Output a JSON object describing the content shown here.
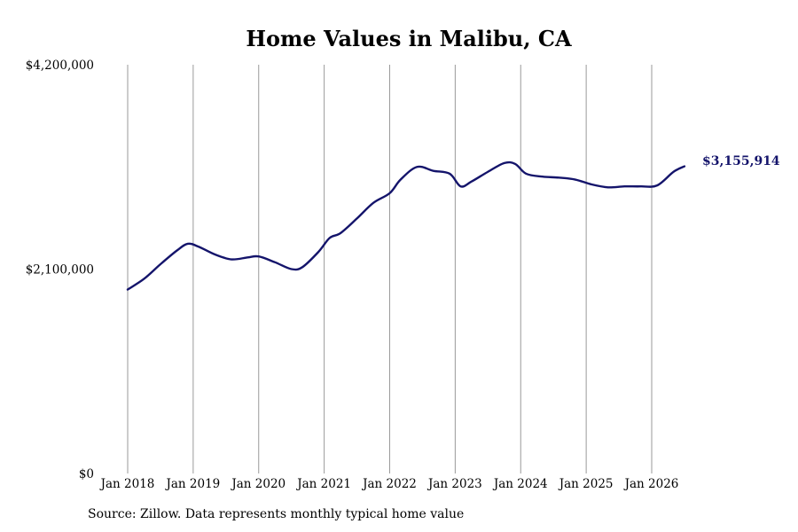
{
  "chart_data": {
    "type": "line",
    "title": "Home Values in Malibu, CA",
    "xlabel": "",
    "ylabel": "",
    "ylim": [
      0,
      4200000
    ],
    "y_ticks": [
      0,
      2100000,
      4200000
    ],
    "y_tick_labels": [
      "$0",
      "$2,100,000",
      "$4,200,000"
    ],
    "x_ticks": [
      "2018-01",
      "2019-01",
      "2020-01",
      "2021-01",
      "2022-01",
      "2023-01",
      "2024-01",
      "2025-01",
      "2026-01"
    ],
    "x_tick_labels": [
      "Jan 2018",
      "Jan 2019",
      "Jan 2020",
      "Jan 2021",
      "Jan 2022",
      "Jan 2023",
      "Jan 2024",
      "Jan 2025",
      "Jan 2026"
    ],
    "grid": "vertical gridlines at year ticks",
    "line_color": "#14146b",
    "end_label": "$3,155,914",
    "series": [
      {
        "x": [
          "2018-01",
          "2018-04",
          "2018-07",
          "2018-10",
          "2018-12",
          "2019-02",
          "2019-05",
          "2019-08",
          "2019-11",
          "2020-01",
          "2020-04",
          "2020-07",
          "2020-09",
          "2020-12",
          "2021-02",
          "2021-04",
          "2021-07",
          "2021-10",
          "2022-01",
          "2022-03",
          "2022-06",
          "2022-09",
          "2022-12",
          "2023-02",
          "2023-04",
          "2023-07",
          "2023-10",
          "2023-12",
          "2024-02",
          "2024-05",
          "2024-08",
          "2024-11",
          "2025-02",
          "2025-05",
          "2025-08",
          "2025-11",
          "2026-02",
          "2026-05",
          "2026-07"
        ],
        "y": [
          1890000,
          2000000,
          2150000,
          2290000,
          2360000,
          2330000,
          2250000,
          2200000,
          2220000,
          2230000,
          2170000,
          2100000,
          2120000,
          2280000,
          2420000,
          2470000,
          2620000,
          2780000,
          2880000,
          3020000,
          3150000,
          3110000,
          3080000,
          2950000,
          3000000,
          3100000,
          3190000,
          3180000,
          3080000,
          3050000,
          3040000,
          3020000,
          2970000,
          2940000,
          2950000,
          2950000,
          2960000,
          3100000,
          3155914
        ]
      }
    ]
  },
  "footer": {
    "source": "Source: Zillow. Data represents monthly typical home value"
  }
}
